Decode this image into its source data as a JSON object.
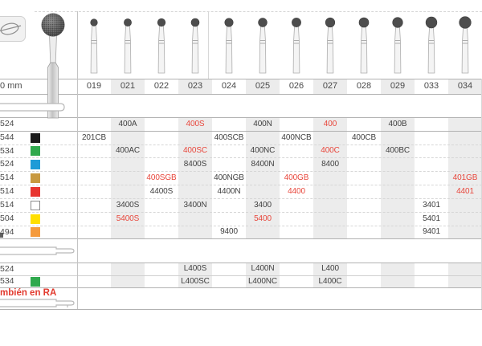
{
  "colors": {
    "red_text": "#e8473c",
    "black_text": "#3f3f3f",
    "stripe": "#ececec",
    "note_red": "#e23a2e",
    "squares": {
      "black": "#1a1a1a",
      "green": "#2fa94d",
      "blue": "#1e9bd7",
      "gold": "#c8993f",
      "red": "#e8352f",
      "white": "#ffffff",
      "yellow": "#ffdf00",
      "orange": "#f59a3c"
    }
  },
  "scale_label": "0 mm",
  "columns": [
    "019",
    "021",
    "022",
    "023",
    "024",
    "025",
    "026",
    "027",
    "028",
    "029",
    "033",
    "034"
  ],
  "shaded_columns": [
    1,
    3,
    5,
    7,
    9,
    11
  ],
  "sections": [
    {
      "name": "round-burs-fg",
      "rows": [
        {
          "code": "524",
          "square": null,
          "cells": [
            {
              "col": "021",
              "text": "400A"
            },
            {
              "col": "023",
              "text": "400S",
              "red": true
            },
            {
              "col": "025",
              "text": "400N"
            },
            {
              "col": "027",
              "text": "400",
              "red": true
            },
            {
              "col": "029",
              "text": "400B"
            }
          ]
        },
        {
          "code": "544",
          "square": "black",
          "cells": [
            {
              "col": "019",
              "text": "201CB"
            },
            {
              "col": "024",
              "text": "400SCB"
            },
            {
              "col": "026",
              "text": "400NCB"
            },
            {
              "col": "028",
              "text": "400CB"
            }
          ]
        },
        {
          "code": "534",
          "square": "green",
          "cells": [
            {
              "col": "021",
              "text": "400AC"
            },
            {
              "col": "023",
              "text": "400SC",
              "red": true
            },
            {
              "col": "025",
              "text": "400NC"
            },
            {
              "col": "027",
              "text": "400C",
              "red": true
            },
            {
              "col": "029",
              "text": "400BC"
            }
          ]
        },
        {
          "code": "524",
          "square": "blue",
          "cells": [
            {
              "col": "023",
              "text": "8400S"
            },
            {
              "col": "025",
              "text": "8400N"
            },
            {
              "col": "027",
              "text": "8400"
            }
          ]
        },
        {
          "code": "514",
          "square": "gold",
          "cells": [
            {
              "col": "022",
              "text": "400SGB",
              "red": true
            },
            {
              "col": "024",
              "text": "400NGB"
            },
            {
              "col": "026",
              "text": "400GB",
              "red": true
            },
            {
              "col": "034",
              "text": "401GB",
              "red": true
            }
          ]
        },
        {
          "code": "514",
          "square": "red",
          "cells": [
            {
              "col": "022",
              "text": "4400S"
            },
            {
              "col": "024",
              "text": "4400N"
            },
            {
              "col": "026",
              "text": "4400",
              "red": true
            },
            {
              "col": "034",
              "text": "4401",
              "red": true
            }
          ]
        },
        {
          "code": "514",
          "square": "white",
          "cells": [
            {
              "col": "021",
              "text": "3400S"
            },
            {
              "col": "023",
              "text": "3400N"
            },
            {
              "col": "025",
              "text": "3400"
            },
            {
              "col": "033",
              "text": "3401"
            }
          ]
        },
        {
          "code": "504",
          "square": "yellow",
          "cells": [
            {
              "col": "021",
              "text": "5400S",
              "red": true
            },
            {
              "col": "025",
              "text": "5400",
              "red": true
            },
            {
              "col": "033",
              "text": "5401"
            }
          ]
        },
        {
          "code": "494",
          "square": "orange",
          "cells": [
            {
              "col": "024",
              "text": "9400"
            },
            {
              "col": "033",
              "text": "9401"
            }
          ]
        }
      ]
    },
    {
      "name": "round-burs-l",
      "rows": [
        {
          "code": "524",
          "square": null,
          "cells": [
            {
              "col": "023",
              "text": "L400S"
            },
            {
              "col": "025",
              "text": "L400N"
            },
            {
              "col": "027",
              "text": "L400"
            }
          ]
        },
        {
          "code": "534",
          "square": "green",
          "cells": [
            {
              "col": "023",
              "text": "L400SC"
            },
            {
              "col": "025",
              "text": "L400NC"
            },
            {
              "col": "027",
              "text": "L400C"
            }
          ]
        }
      ]
    }
  ],
  "footer_note": "mbién en RA",
  "icons": {
    "top_left": "tooth-occlusal-icon",
    "shank_1": "fg-shank-icon",
    "shank_2": "fg-shank-stepped-icon",
    "shank_3": "ra-shank-icon"
  }
}
